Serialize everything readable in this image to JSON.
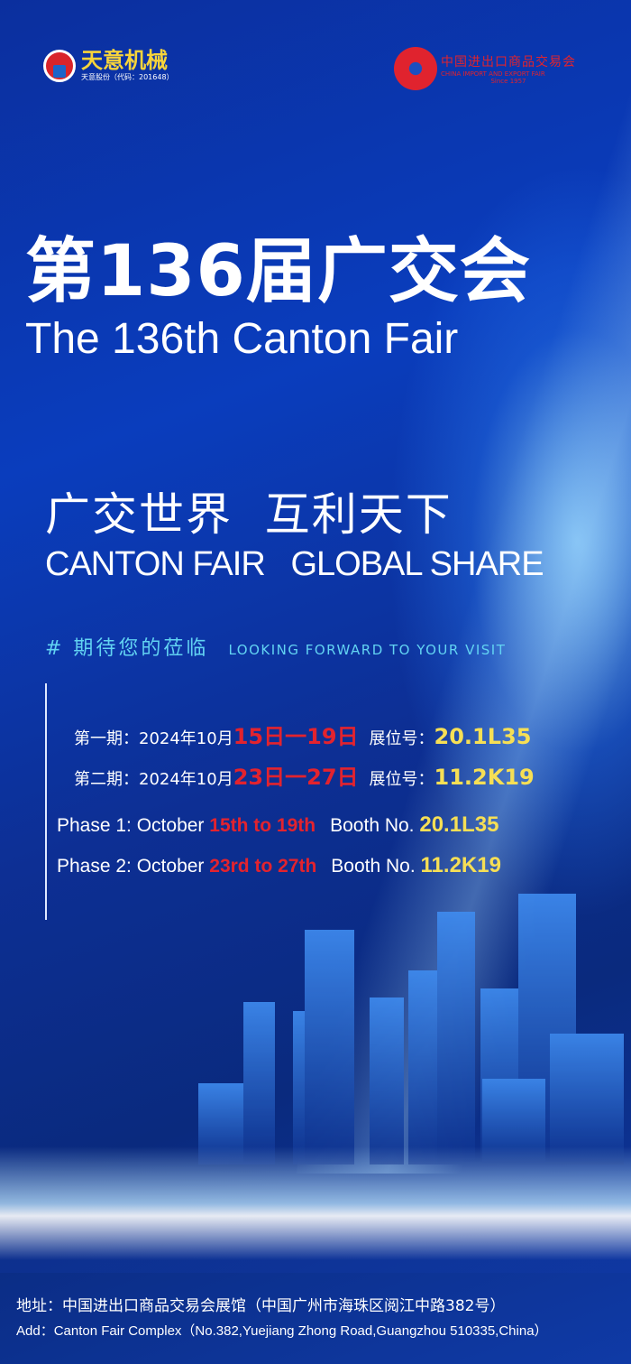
{
  "colors": {
    "background": "#0b2f9e",
    "accent_red": "#e3232e",
    "accent_yellow": "#f6df55",
    "accent_cyan": "#62d3f2"
  },
  "brand": {
    "name": "天意机械",
    "sub": "天意股份（代码：201648）"
  },
  "fair_logo": {
    "cn": "中国进出口商品交易会",
    "en": "CHINA IMPORT AND EXPORT FAIR",
    "since": "Since 1957"
  },
  "title": {
    "cn": "第136届广交会",
    "en": "The 136th Canton Fair"
  },
  "slogan": {
    "cn": "广交世界  互利天下",
    "en": "CANTON FAIR   GLOBAL SHARE"
  },
  "welcome": {
    "cn": "# 期待您的莅临",
    "en": "LOOKING FORWARD TO YOUR VISIT"
  },
  "schedule_cn": [
    {
      "label": "第一期：2024年10月",
      "dates": "15日一19日",
      "booth_label": "展位号：",
      "booth": "20.1L35"
    },
    {
      "label": "第二期：2024年10月",
      "dates": "23日一27日",
      "booth_label": "展位号：",
      "booth": "11.2K19"
    }
  ],
  "schedule_en": [
    {
      "label": "Phase 1: October ",
      "dates": "15th to 19th",
      "booth_label": "Booth No. ",
      "booth": "20.1L35"
    },
    {
      "label": "Phase 2: October ",
      "dates": "23rd to 27th",
      "booth_label": "Booth No. ",
      "booth": "11.2K19"
    }
  ],
  "address": {
    "cn": "地址：中国进出口商品交易会展馆（中国广州市海珠区阅江中路382号）",
    "en": "Add：Canton Fair Complex（No.382,Yuejiang Zhong Road,Guangzhou 510335,China）"
  }
}
